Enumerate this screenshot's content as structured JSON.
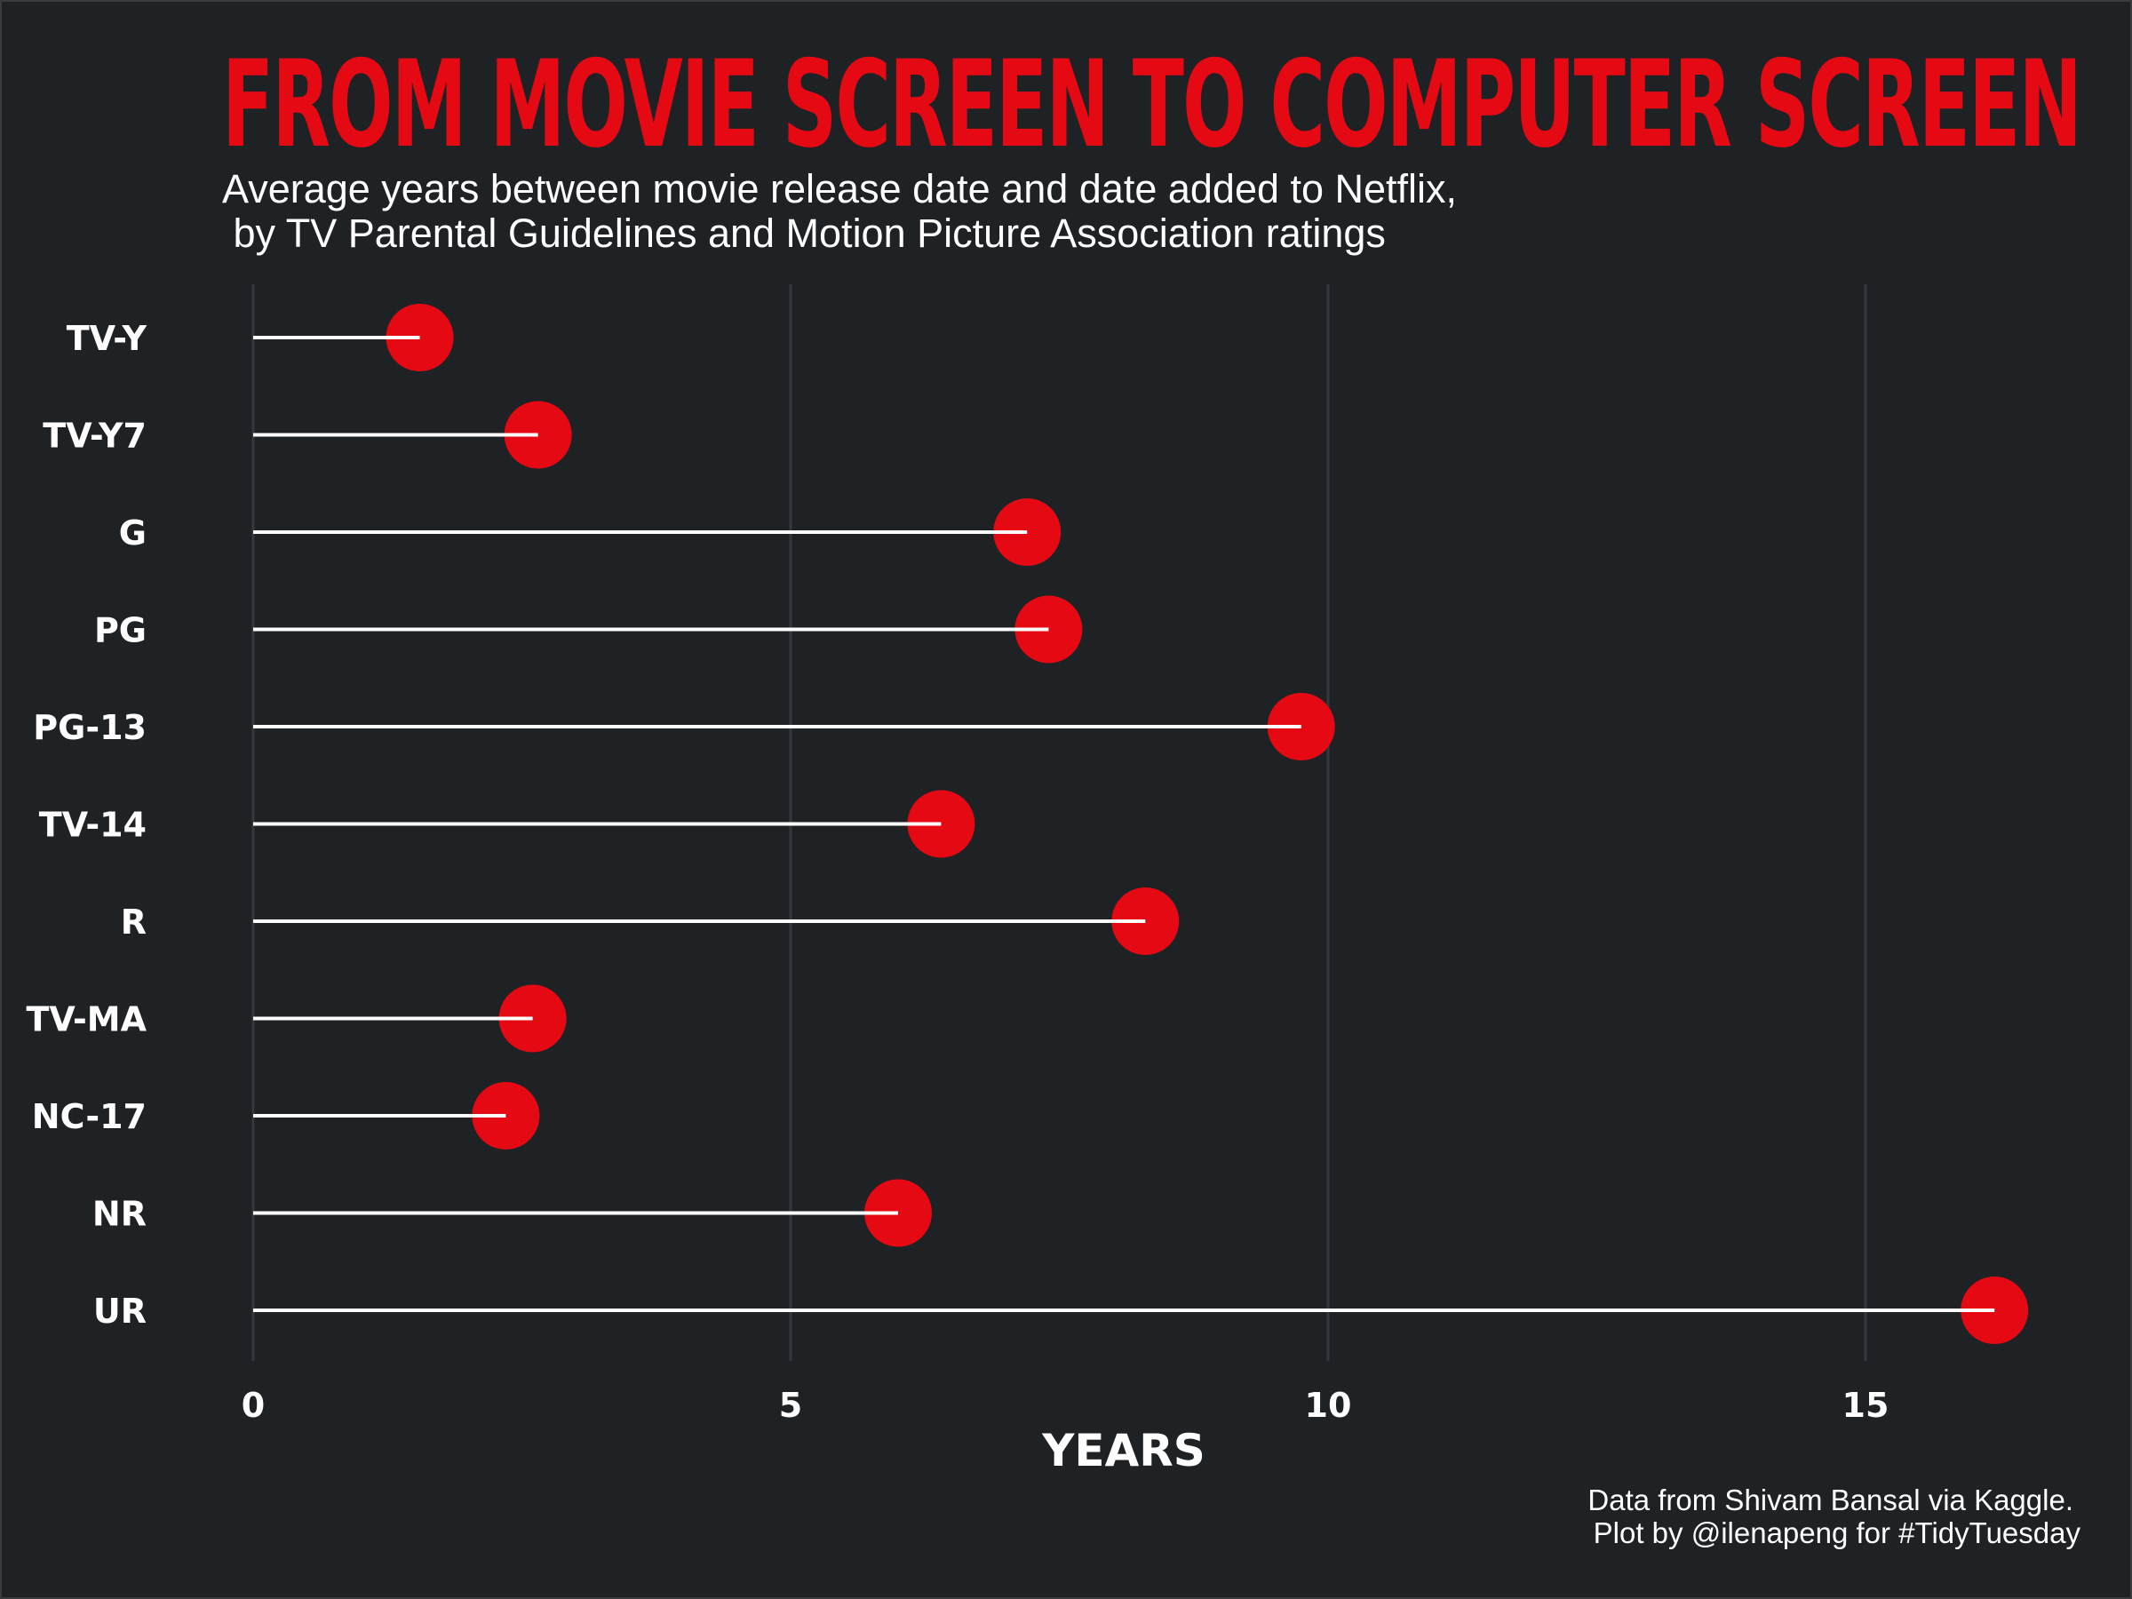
{
  "chart_data": {
    "type": "lollipop",
    "title": "FROM MOVIE SCREEN TO COMPUTER SCREEN",
    "subtitle_lines": [
      "Average years between movie release date and date added to Netflix,",
      " by TV Parental Guidelines and Motion Picture Association ratings"
    ],
    "xlabel": "YEARS",
    "ylabel": "",
    "xlim": [
      0,
      16.5
    ],
    "x_ticks": [
      "0",
      "5",
      "10",
      "15"
    ],
    "categories": [
      "TV-Y",
      "TV-Y7",
      "G",
      "PG",
      "PG-13",
      "TV-14",
      "R",
      "TV-MA",
      "NC-17",
      "NR",
      "UR"
    ],
    "values": [
      1.55,
      2.65,
      7.2,
      7.4,
      9.75,
      6.4,
      8.3,
      2.6,
      2.35,
      6.0,
      16.2
    ],
    "grid": "vertical",
    "legend": "none",
    "caption_lines": [
      "Data from Shivam Bansal via Kaggle.",
      "Plot by @ilenapeng for #TidyTuesday"
    ],
    "colors": {
      "background": "#1f2225",
      "accent": "#e50914",
      "text": "#ffffff",
      "grid": "#34373b"
    }
  }
}
